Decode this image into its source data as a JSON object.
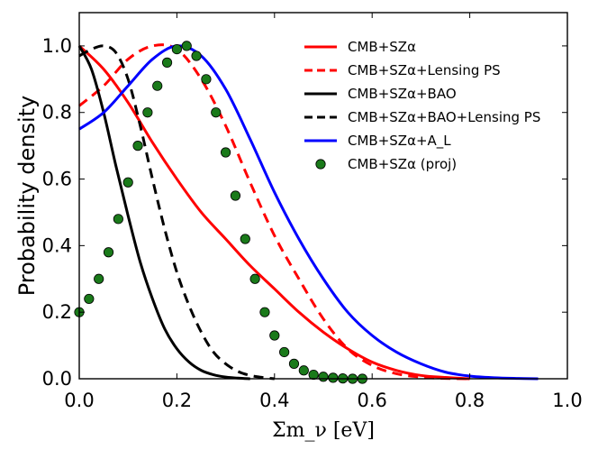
{
  "chart_data": {
    "type": "line",
    "xlabel": "Σm_ν [eV]",
    "ylabel": "Probability density",
    "xlim": [
      0.0,
      1.0
    ],
    "ylim": [
      0.0,
      1.1
    ],
    "x_ticks": [
      "0.0",
      "0.2",
      "0.4",
      "0.6",
      "0.8",
      "1.0"
    ],
    "y_ticks": [
      "0.0",
      "0.2",
      "0.4",
      "0.6",
      "0.8",
      "1.0"
    ],
    "grid": false,
    "legend_position": "top-right",
    "series": [
      {
        "name": "CMB+SZα",
        "color": "#ff0000",
        "style": "solid",
        "x": [
          0.0,
          0.05,
          0.1,
          0.15,
          0.2,
          0.25,
          0.3,
          0.35,
          0.4,
          0.45,
          0.5,
          0.55,
          0.6,
          0.65,
          0.7,
          0.75,
          0.8
        ],
        "y": [
          1.0,
          0.93,
          0.83,
          0.71,
          0.6,
          0.5,
          0.42,
          0.34,
          0.27,
          0.2,
          0.14,
          0.09,
          0.05,
          0.025,
          0.01,
          0.004,
          0.0
        ]
      },
      {
        "name": "CMB+SZα+Lensing PS",
        "color": "#ff0000",
        "style": "dashed",
        "x": [
          0.0,
          0.05,
          0.1,
          0.15,
          0.2,
          0.25,
          0.3,
          0.35,
          0.4,
          0.45,
          0.5,
          0.55,
          0.6,
          0.65,
          0.7,
          0.75,
          0.8
        ],
        "y": [
          0.82,
          0.88,
          0.96,
          1.0,
          0.99,
          0.9,
          0.76,
          0.59,
          0.43,
          0.3,
          0.18,
          0.09,
          0.04,
          0.015,
          0.005,
          0.001,
          0.0
        ]
      },
      {
        "name": "CMB+SZα+BAO",
        "color": "#000000",
        "style": "solid",
        "x": [
          0.0,
          0.025,
          0.05,
          0.075,
          0.1,
          0.125,
          0.15,
          0.175,
          0.2,
          0.225,
          0.25,
          0.275,
          0.3,
          0.325,
          0.35
        ],
        "y": [
          1.0,
          0.93,
          0.8,
          0.64,
          0.49,
          0.35,
          0.24,
          0.15,
          0.09,
          0.05,
          0.025,
          0.012,
          0.005,
          0.002,
          0.0
        ]
      },
      {
        "name": "CMB+SZα+BAO+Lensing PS",
        "color": "#000000",
        "style": "dashed",
        "x": [
          0.0,
          0.025,
          0.05,
          0.075,
          0.1,
          0.125,
          0.15,
          0.175,
          0.2,
          0.225,
          0.25,
          0.275,
          0.3,
          0.325,
          0.35,
          0.375,
          0.4
        ],
        "y": [
          0.97,
          0.99,
          1.0,
          0.98,
          0.9,
          0.76,
          0.6,
          0.45,
          0.32,
          0.22,
          0.14,
          0.08,
          0.045,
          0.022,
          0.01,
          0.004,
          0.0
        ]
      },
      {
        "name": "CMB+SZα+A_L",
        "color": "#0000ff",
        "style": "solid",
        "x": [
          0.0,
          0.05,
          0.1,
          0.15,
          0.2,
          0.25,
          0.3,
          0.35,
          0.4,
          0.45,
          0.5,
          0.55,
          0.6,
          0.65,
          0.7,
          0.75,
          0.8,
          0.85,
          0.9,
          0.94
        ],
        "y": [
          0.75,
          0.8,
          0.88,
          0.96,
          1.0,
          0.97,
          0.87,
          0.72,
          0.56,
          0.42,
          0.3,
          0.2,
          0.13,
          0.08,
          0.045,
          0.02,
          0.008,
          0.003,
          0.001,
          0.0
        ]
      },
      {
        "name": "CMB+SZα (proj)",
        "color": "#1a7a1a",
        "style": "markers",
        "x": [
          0.0,
          0.02,
          0.04,
          0.06,
          0.08,
          0.1,
          0.12,
          0.14,
          0.16,
          0.18,
          0.2,
          0.22,
          0.24,
          0.26,
          0.28,
          0.3,
          0.32,
          0.34,
          0.36,
          0.38,
          0.4,
          0.42,
          0.44,
          0.46,
          0.48,
          0.5,
          0.52,
          0.54,
          0.56,
          0.58
        ],
        "y": [
          0.2,
          0.24,
          0.3,
          0.38,
          0.48,
          0.59,
          0.7,
          0.8,
          0.88,
          0.95,
          0.99,
          1.0,
          0.97,
          0.9,
          0.8,
          0.68,
          0.55,
          0.42,
          0.3,
          0.2,
          0.13,
          0.08,
          0.045,
          0.025,
          0.012,
          0.006,
          0.003,
          0.001,
          0.0,
          0.0
        ]
      }
    ]
  }
}
